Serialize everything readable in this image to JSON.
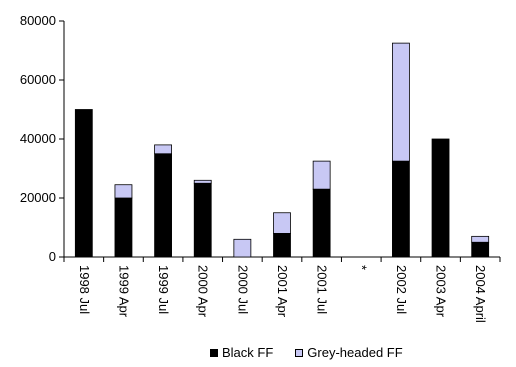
{
  "chart_data": {
    "type": "bar",
    "stacked": true,
    "categories": [
      "1998 Jul",
      "1999 Apr",
      "1999 Jul",
      "2000 Apr",
      "2000 Jul",
      "2001 Apr",
      "2001 Jul",
      "*",
      "2002 Jul",
      "2003 Apr",
      "2004 April"
    ],
    "series": [
      {
        "name": "Black FF",
        "color": "#000000",
        "values": [
          50000,
          20000,
          35000,
          25000,
          0,
          8000,
          23000,
          0,
          32500,
          40000,
          5000
        ]
      },
      {
        "name": "Grey-headed FF",
        "color": "#c8c8f4",
        "values": [
          0,
          4500,
          3000,
          1000,
          6000,
          7000,
          9500,
          0,
          40000,
          0,
          2000
        ]
      }
    ],
    "ylim": [
      0,
      80000
    ],
    "yticks": [
      "0",
      "20000",
      "40000",
      "60000",
      "80000"
    ],
    "legend_position": "bottom",
    "grid": false
  }
}
